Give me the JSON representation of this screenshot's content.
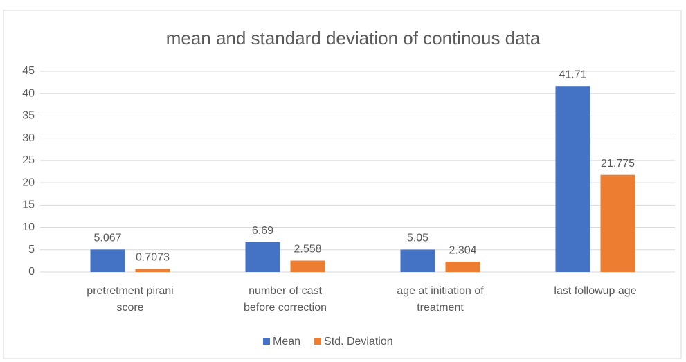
{
  "chart_data": {
    "type": "bar",
    "title": "mean and standard deviation of continous data",
    "categories": [
      [
        "pretretment pirani",
        "score"
      ],
      [
        "number of cast",
        "before correction"
      ],
      [
        "age at initiation of",
        "treatment"
      ],
      [
        "last followup age"
      ]
    ],
    "series": [
      {
        "name": "Mean",
        "color": "#4472c4",
        "values": [
          5.067,
          6.69,
          5.05,
          41.71
        ]
      },
      {
        "name": "Std. Deviation",
        "color": "#ed7d31",
        "values": [
          0.7073,
          2.558,
          2.304,
          21.775
        ]
      }
    ],
    "ylim": [
      0,
      45
    ],
    "yticks": [
      0,
      5,
      10,
      15,
      20,
      25,
      30,
      35,
      40,
      45
    ],
    "grid": true,
    "legend": "bottom"
  }
}
